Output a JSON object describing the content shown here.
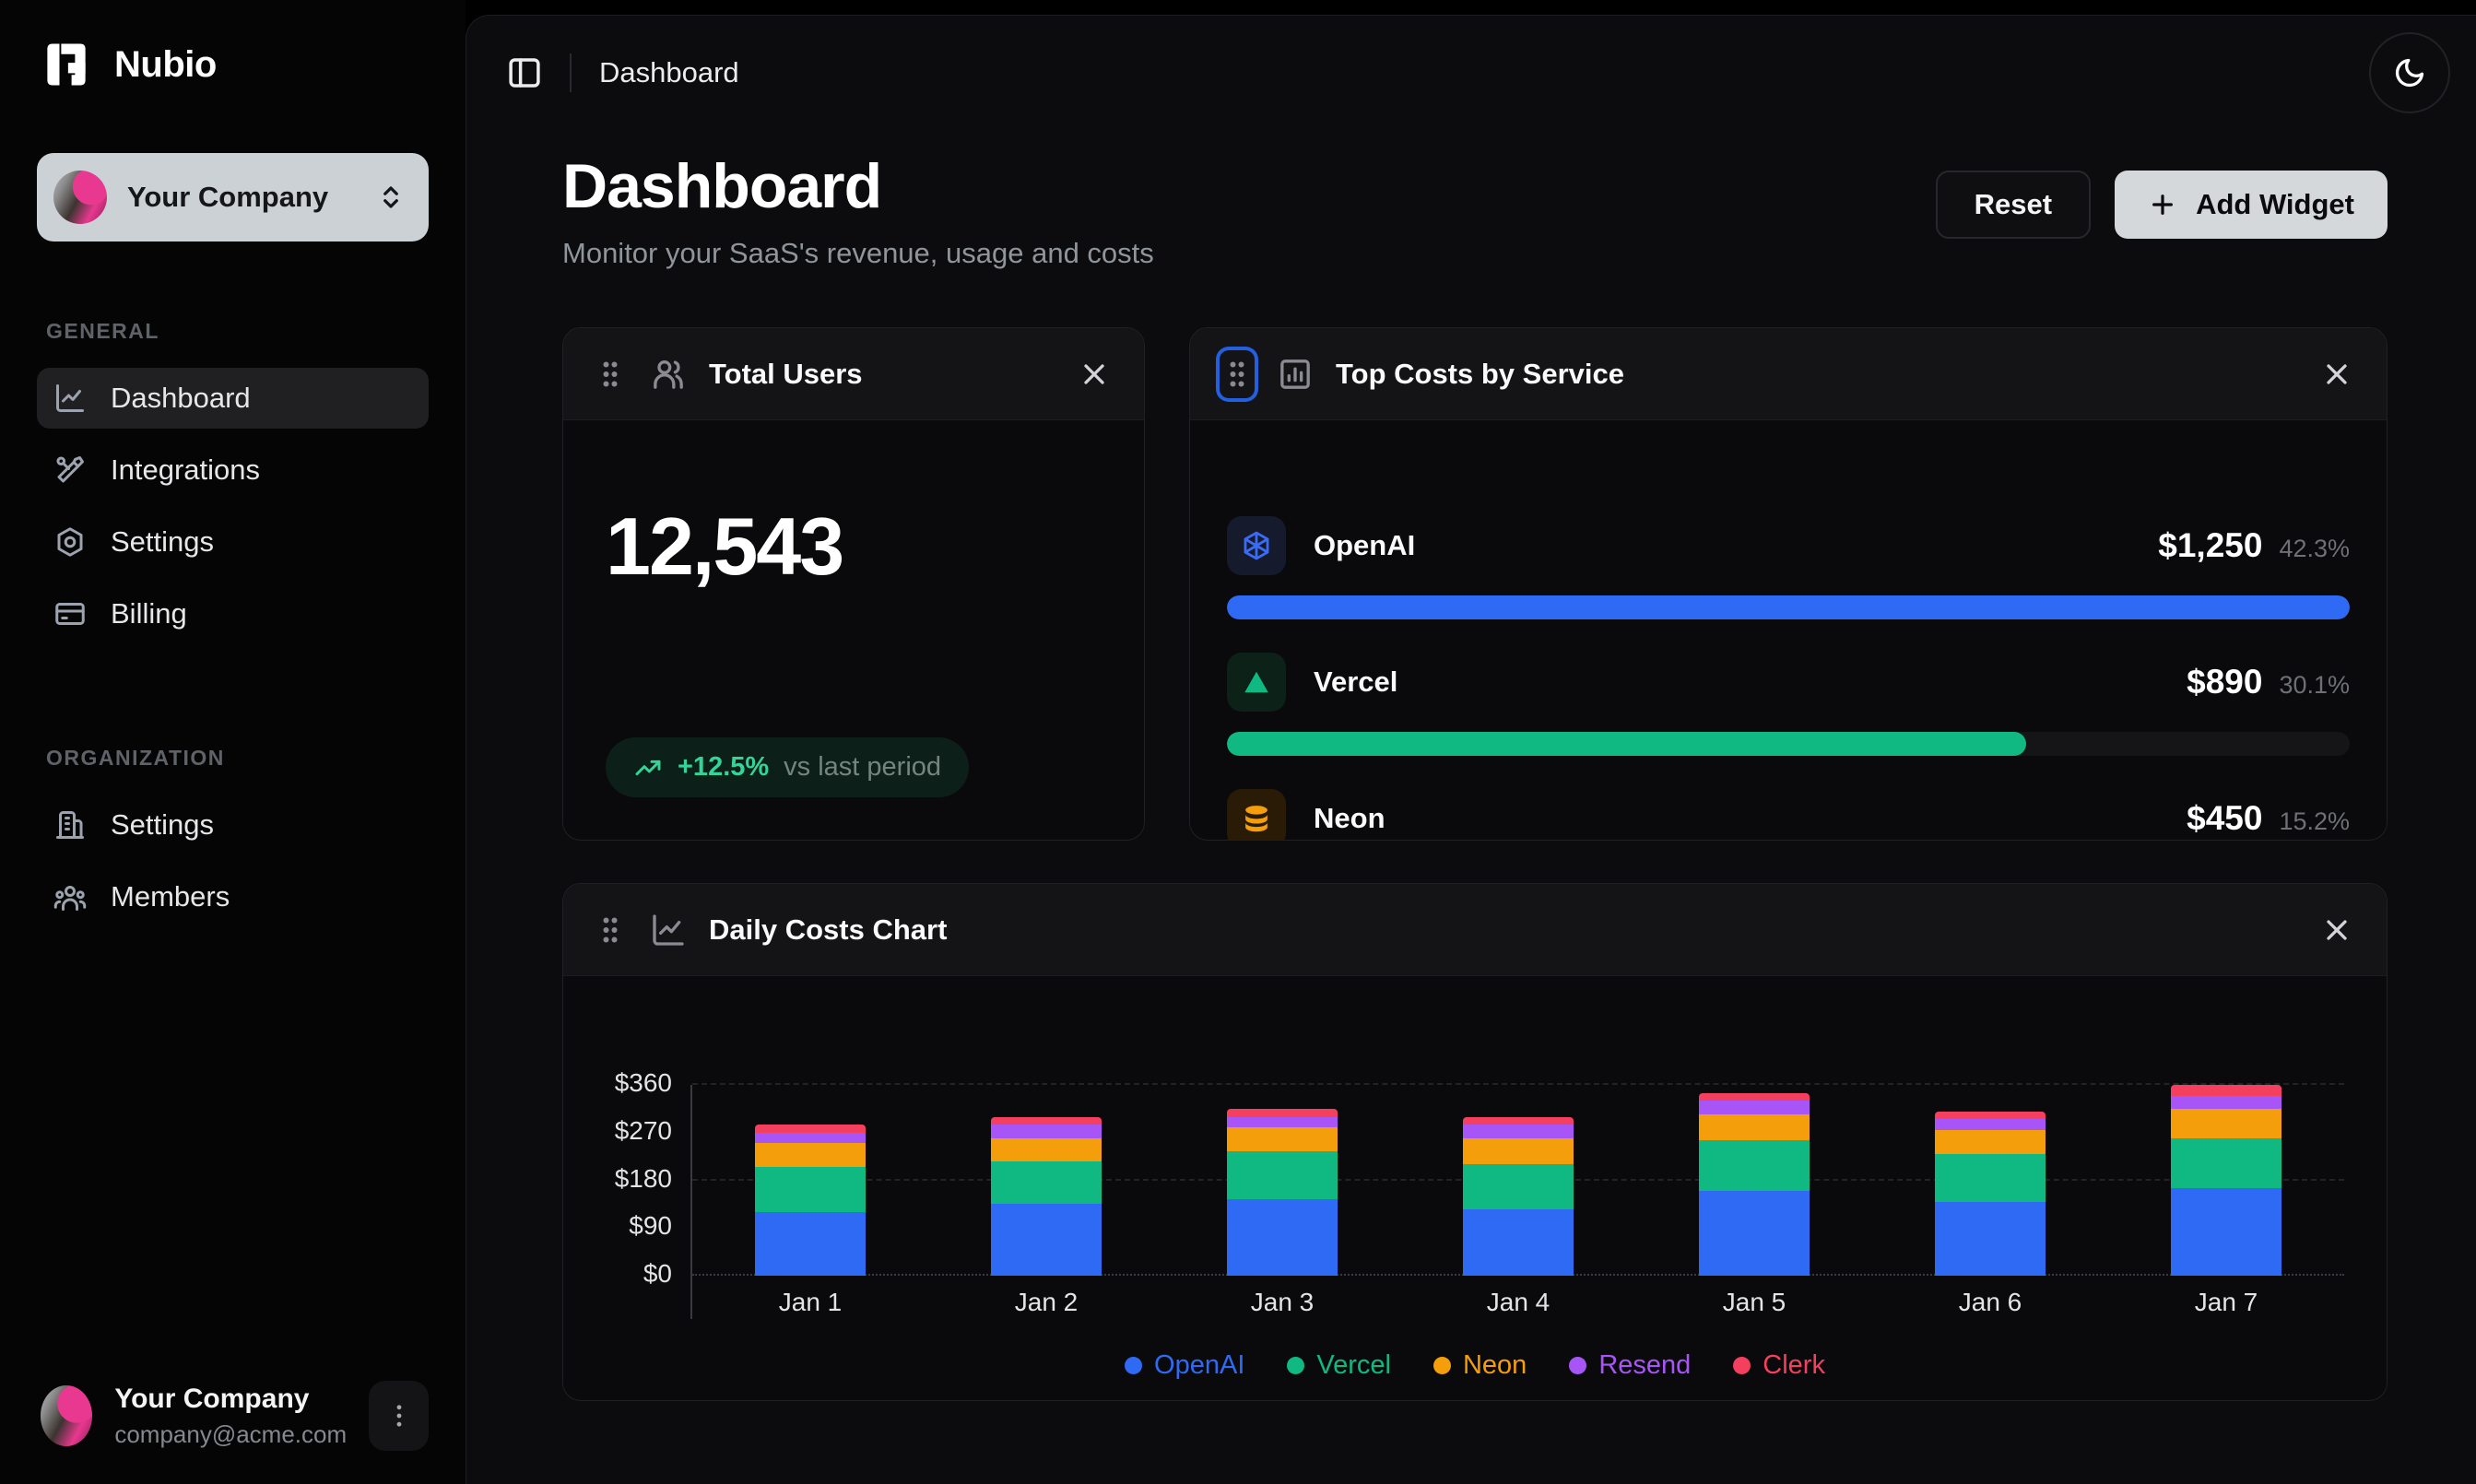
{
  "app": {
    "name": "Nubio"
  },
  "sidebar": {
    "workspace": {
      "name": "Your Company"
    },
    "sections": [
      {
        "label": "GENERAL",
        "items": [
          {
            "label": "Dashboard",
            "active": true
          },
          {
            "label": "Integrations",
            "active": false
          },
          {
            "label": "Settings",
            "active": false
          },
          {
            "label": "Billing",
            "active": false
          }
        ]
      },
      {
        "label": "ORGANIZATION",
        "items": [
          {
            "label": "Settings",
            "active": false
          },
          {
            "label": "Members",
            "active": false
          }
        ]
      }
    ],
    "user": {
      "name": "Your Company",
      "email": "company@acme.com"
    }
  },
  "topbar": {
    "breadcrumb": "Dashboard"
  },
  "page": {
    "title": "Dashboard",
    "subtitle": "Monitor your SaaS's revenue, usage and costs",
    "reset_label": "Reset",
    "add_widget_label": "Add Widget"
  },
  "widgets": {
    "total_users": {
      "title": "Total Users",
      "value": "12,543",
      "delta": "+12.5%",
      "delta_caption": "vs last period"
    },
    "top_costs": {
      "title": "Top Costs by Service",
      "services": [
        {
          "name": "OpenAI",
          "amount": "$1,250",
          "percent": "42.3%",
          "value": 1250,
          "color": "#2f6af5"
        },
        {
          "name": "Vercel",
          "amount": "$890",
          "percent": "30.1%",
          "value": 890,
          "color": "#10b981"
        },
        {
          "name": "Neon",
          "amount": "$450",
          "percent": "15.2%",
          "value": 450,
          "color": "#f59e0b"
        }
      ]
    },
    "daily_costs": {
      "title": "Daily Costs Chart"
    }
  },
  "chart_data": {
    "type": "bar",
    "stacked": true,
    "title": "Daily Costs Chart",
    "categories": [
      "Jan 1",
      "Jan 2",
      "Jan 3",
      "Jan 4",
      "Jan 5",
      "Jan 6",
      "Jan 7"
    ],
    "series": [
      {
        "name": "OpenAI",
        "color": "#2f6af5",
        "values": [
          120,
          135,
          145,
          125,
          160,
          140,
          165
        ]
      },
      {
        "name": "Vercel",
        "color": "#10b981",
        "values": [
          85,
          80,
          90,
          85,
          95,
          90,
          95
        ]
      },
      {
        "name": "Neon",
        "color": "#f59e0b",
        "values": [
          45,
          45,
          45,
          50,
          50,
          45,
          55
        ]
      },
      {
        "name": "Resend",
        "color": "#a855f7",
        "values": [
          20,
          25,
          20,
          25,
          25,
          20,
          25
        ]
      },
      {
        "name": "Clerk",
        "color": "#f43f5e",
        "values": [
          15,
          15,
          15,
          15,
          15,
          15,
          20
        ]
      }
    ],
    "xlabel": "",
    "ylabel": "",
    "ytick_labels": [
      "$0",
      "$90",
      "$180",
      "$270",
      "$360"
    ],
    "ytick_values": [
      0,
      90,
      180,
      270,
      360
    ],
    "gridline_values": [
      0,
      180,
      360
    ],
    "ylim": [
      0,
      360
    ],
    "grid": "dashed-horizontal",
    "legend_position": "bottom"
  }
}
